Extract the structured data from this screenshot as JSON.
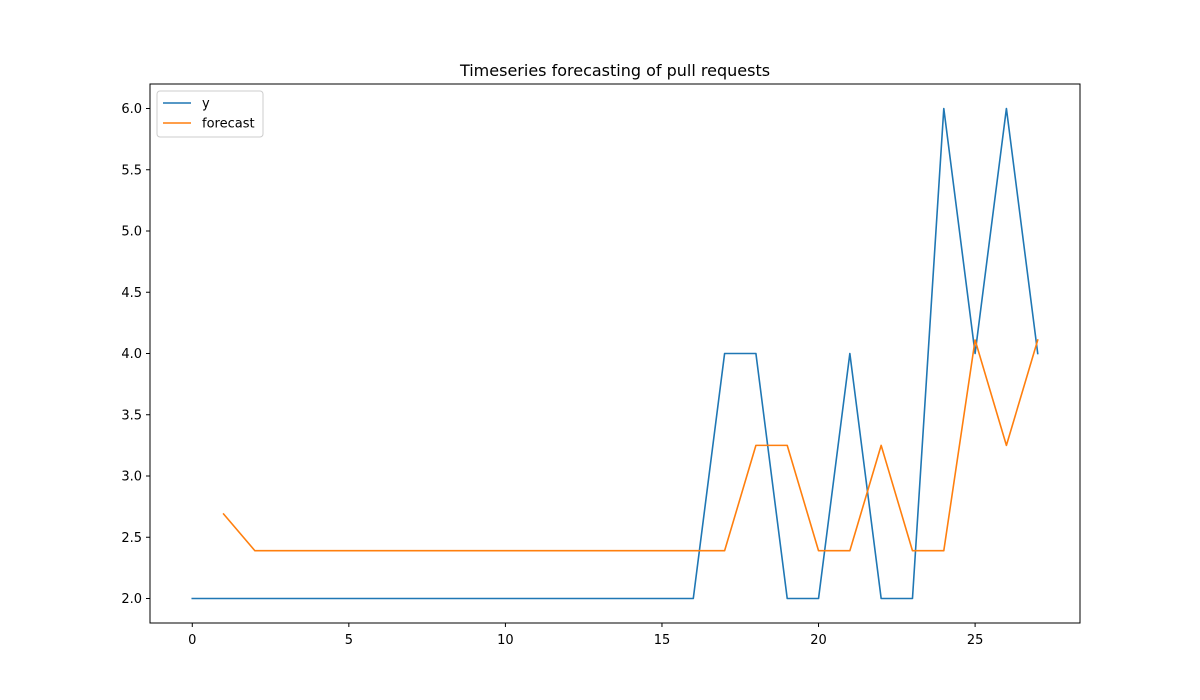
{
  "chart_data": {
    "type": "line",
    "title": "Timeseries forecasting of pull requests",
    "xlabel": "",
    "ylabel": "",
    "xlim": [
      -1.35,
      28.35
    ],
    "ylim": [
      1.8,
      6.2
    ],
    "xticks": [
      0,
      5,
      10,
      15,
      20,
      25
    ],
    "yticks": [
      2.0,
      2.5,
      3.0,
      3.5,
      4.0,
      4.5,
      5.0,
      5.5,
      6.0
    ],
    "grid": false,
    "legend_position": "upper-left",
    "series": [
      {
        "name": "y",
        "color": "#1f77b4",
        "x": [
          0,
          1,
          2,
          3,
          4,
          5,
          6,
          7,
          8,
          9,
          10,
          11,
          12,
          13,
          14,
          15,
          16,
          17,
          18,
          19,
          20,
          21,
          22,
          23,
          24,
          25,
          26,
          27
        ],
        "values": [
          2,
          2,
          2,
          2,
          2,
          2,
          2,
          2,
          2,
          2,
          2,
          2,
          2,
          2,
          2,
          2,
          2,
          4,
          4,
          2,
          2,
          4,
          2,
          2,
          6,
          4,
          6,
          4
        ]
      },
      {
        "name": "forecast",
        "color": "#ff7f0e",
        "x": [
          1,
          2,
          3,
          4,
          5,
          6,
          7,
          8,
          9,
          10,
          11,
          12,
          13,
          14,
          15,
          16,
          17,
          18,
          19,
          20,
          21,
          22,
          23,
          24,
          25,
          26,
          27
        ],
        "values": [
          2.69,
          2.39,
          2.39,
          2.39,
          2.39,
          2.39,
          2.39,
          2.39,
          2.39,
          2.39,
          2.39,
          2.39,
          2.39,
          2.39,
          2.39,
          2.39,
          2.39,
          3.25,
          3.25,
          2.39,
          2.39,
          3.25,
          2.39,
          2.39,
          4.11,
          3.25,
          4.11
        ]
      }
    ]
  }
}
